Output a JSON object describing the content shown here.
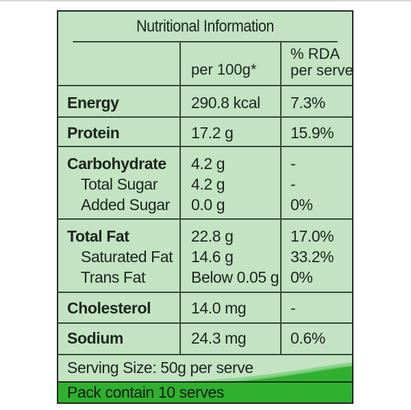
{
  "label": {
    "title": "Nutritional Information",
    "columns": {
      "per_100g": "per 100g*",
      "rda_line1": "% RDA",
      "rda_line2": "per serve",
      "rda_mark": "#"
    },
    "rows": [
      {
        "name": "Energy",
        "value": "290.8 kcal",
        "rda": "7.3%"
      },
      {
        "name": "Protein",
        "value": "17.2 g",
        "rda": "15.9%"
      },
      {
        "name": "Carbohydrate",
        "value": "4.2 g",
        "rda": "-"
      },
      {
        "name": "Total Sugar",
        "value": "4.2 g",
        "rda": "-"
      },
      {
        "name": "Added Sugar",
        "value": "0.0 g",
        "rda": "0%"
      },
      {
        "name": "Total Fat",
        "value": "22.8 g",
        "rda": "17.0%"
      },
      {
        "name": "Saturated Fat",
        "value": "14.6 g",
        "rda": "33.2%"
      },
      {
        "name": "Trans Fat",
        "value": "Below 0.05 g",
        "rda": "0%"
      },
      {
        "name": "Cholesterol",
        "value": "14.0 mg",
        "rda": "-"
      },
      {
        "name": "Sodium",
        "value": "24.3 mg",
        "rda": "0.6%"
      }
    ],
    "serving_size": "Serving Size: 50g per serve",
    "pack_contents": "Pack contain 10 serves"
  },
  "colors": {
    "panel_background": "#c3e3c3",
    "grid_lines": "#334a33",
    "accent_green": "#2fb12f",
    "text": "#1c241c"
  }
}
